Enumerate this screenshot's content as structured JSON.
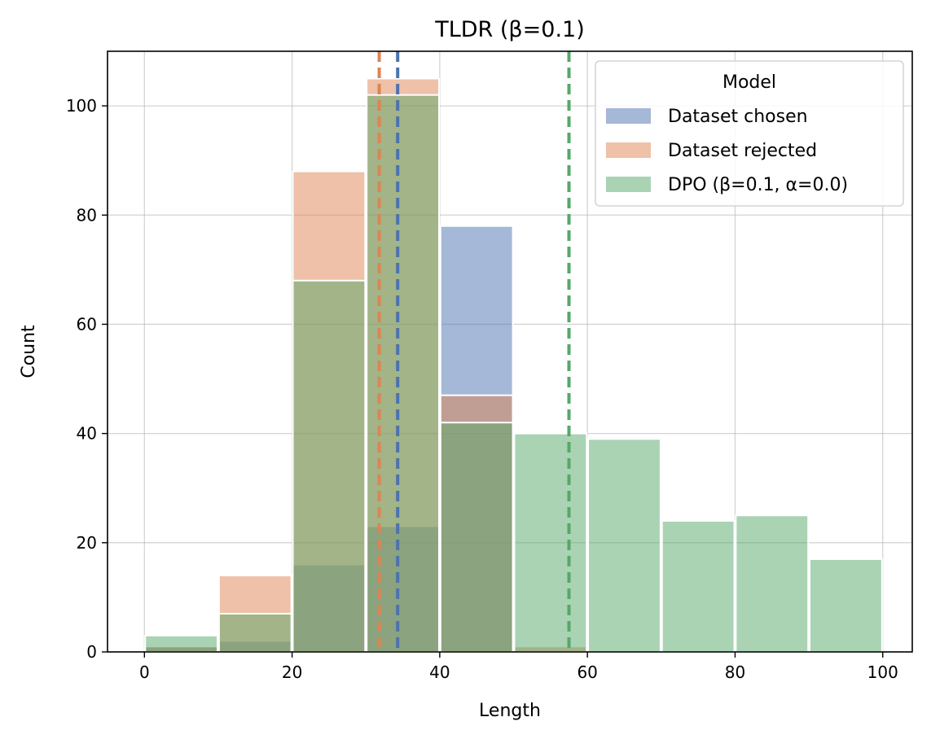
{
  "chart_data": {
    "type": "bar",
    "subtype": "histogram",
    "title": "TLDR (β=0.1)",
    "xlabel": "Length",
    "ylabel": "Count",
    "xlim": [
      -5,
      104
    ],
    "ylim": [
      0,
      110
    ],
    "xticks": [
      0,
      20,
      40,
      60,
      80,
      100
    ],
    "yticks": [
      0,
      20,
      40,
      60,
      80,
      100
    ],
    "grid": true,
    "bin_edges": [
      0,
      10,
      20,
      30,
      40,
      50,
      60,
      70,
      80,
      90,
      100
    ],
    "bar_width": 9.8,
    "bar_opacity": 0.5,
    "legend": {
      "title": "Model",
      "position": "top-right"
    },
    "series": [
      {
        "name": "Dataset chosen",
        "color": "#4c72b0",
        "values": [
          1,
          2,
          16,
          23,
          78,
          0,
          0,
          0,
          0,
          0
        ],
        "mean": 34.3
      },
      {
        "name": "Dataset rejected",
        "color": "#dd8452",
        "values": [
          1,
          14,
          88,
          105,
          47,
          1,
          0,
          0,
          0,
          0
        ],
        "mean": 31.8
      },
      {
        "name": "DPO (β=0.1, α=0.0)",
        "color": "#55a868",
        "values": [
          3,
          7,
          68,
          102,
          42,
          40,
          39,
          24,
          25,
          17
        ],
        "mean": 57.5
      }
    ]
  }
}
